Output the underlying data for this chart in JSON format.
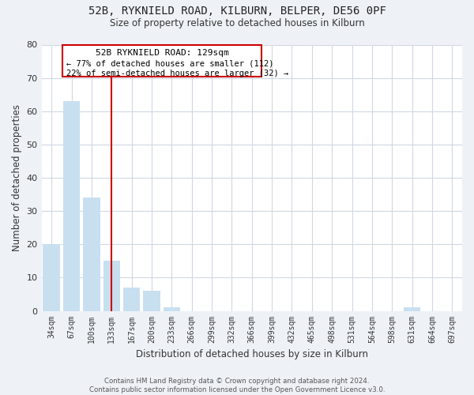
{
  "title": "52B, RYKNIELD ROAD, KILBURN, BELPER, DE56 0PF",
  "subtitle": "Size of property relative to detached houses in Kilburn",
  "xlabel": "Distribution of detached houses by size in Kilburn",
  "ylabel": "Number of detached properties",
  "bar_labels": [
    "34sqm",
    "67sqm",
    "100sqm",
    "133sqm",
    "167sqm",
    "200sqm",
    "233sqm",
    "266sqm",
    "299sqm",
    "332sqm",
    "366sqm",
    "399sqm",
    "432sqm",
    "465sqm",
    "498sqm",
    "531sqm",
    "564sqm",
    "598sqm",
    "631sqm",
    "664sqm",
    "697sqm"
  ],
  "bar_values": [
    20,
    63,
    34,
    15,
    7,
    6,
    1,
    0,
    0,
    0,
    0,
    0,
    0,
    0,
    0,
    0,
    0,
    0,
    1,
    0,
    0
  ],
  "bar_color": "#c8dff0",
  "vline_x": 3,
  "vline_color": "#cc0000",
  "annotation_title": "52B RYKNIELD ROAD: 129sqm",
  "annotation_line1": "← 77% of detached houses are smaller (112)",
  "annotation_line2": "22% of semi-detached houses are larger (32) →",
  "annotation_box_color": "#ffffff",
  "annotation_box_edge": "#cc0000",
  "ylim": [
    0,
    80
  ],
  "yticks": [
    0,
    10,
    20,
    30,
    40,
    50,
    60,
    70,
    80
  ],
  "footnote": "Contains HM Land Registry data © Crown copyright and database right 2024.\nContains public sector information licensed under the Open Government Licence v3.0.",
  "bg_color": "#eef2f7",
  "plot_bg_color": "#ffffff",
  "grid_color": "#d0d8e4"
}
